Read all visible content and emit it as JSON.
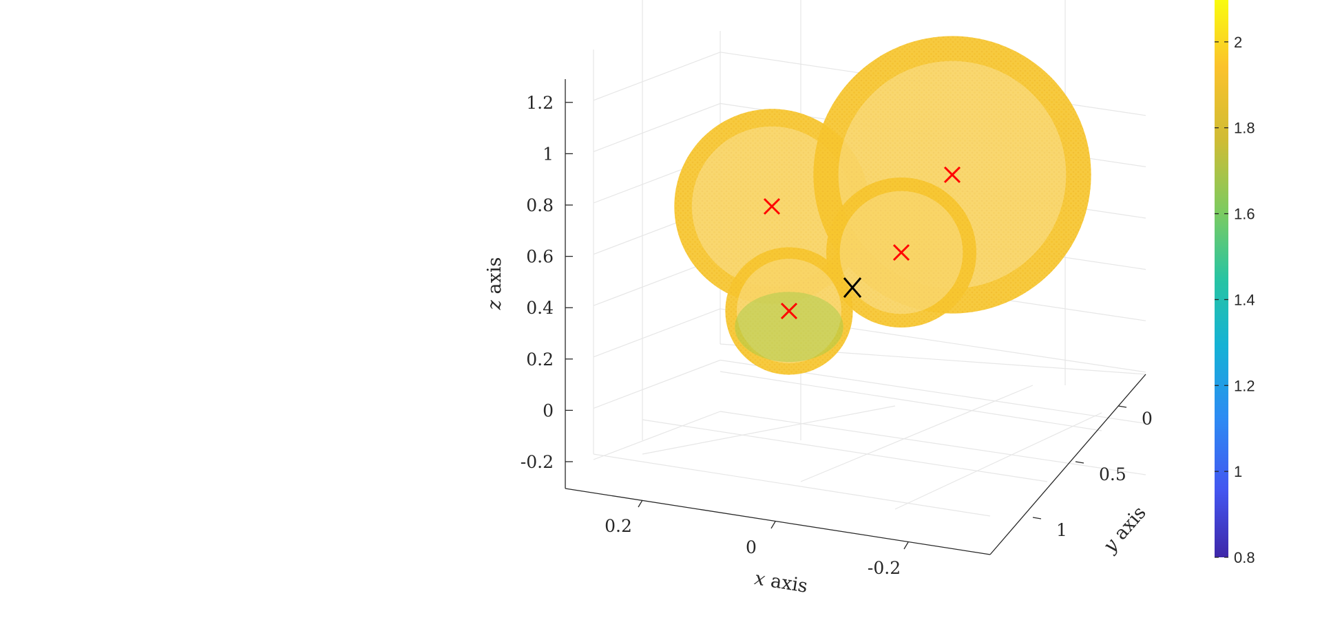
{
  "chart_data": {
    "type": "scatter3d",
    "title": "",
    "axes": {
      "x": {
        "label_var": "x",
        "label_text": "axis",
        "ticks": [
          0.2,
          0,
          -0.2
        ],
        "tick_labels": [
          "0.2",
          "0",
          "-0.2"
        ]
      },
      "y": {
        "label_var": "y",
        "label_text": "axis",
        "ticks": [
          0,
          0.5,
          1
        ],
        "tick_labels": [
          "0",
          "0.5",
          "1"
        ]
      },
      "z": {
        "label_var": "z",
        "label_text": "axis",
        "ticks": [
          -0.2,
          0,
          0.2,
          0.4,
          0.6,
          0.8,
          1,
          1.2
        ],
        "tick_labels": [
          "-0.2",
          "0",
          "0.2",
          "0.4",
          "0.6",
          "0.8",
          "1",
          "1.2"
        ],
        "range": [
          -0.3,
          1.3
        ]
      }
    },
    "grid": true,
    "colormap": "parula",
    "colorbar": {
      "range": [
        0.8,
        2.1
      ],
      "ticks": [
        0.8,
        1,
        1.2,
        1.4,
        1.6,
        1.8,
        2
      ],
      "tick_labels": [
        "0.8",
        "1",
        "1.2",
        "1.4",
        "1.6",
        "1.8",
        "2"
      ],
      "location": "right"
    },
    "spheres": [
      {
        "name": "sphere-1",
        "center": [
          0.07,
          0.05,
          0.75
        ],
        "radius": 0.26,
        "marker_color": "#ff0000",
        "dominant_value": 1.95
      },
      {
        "name": "sphere-2",
        "center": [
          -0.22,
          -0.1,
          0.92
        ],
        "radius": 0.37,
        "marker_color": "#ff0000",
        "dominant_value": 1.95
      },
      {
        "name": "sphere-3",
        "center": [
          -0.12,
          0.35,
          0.62
        ],
        "radius": 0.2,
        "marker_color": "#ff0000",
        "dominant_value": 1.9
      },
      {
        "name": "sphere-4",
        "center": [
          0.12,
          0.75,
          0.4
        ],
        "radius": 0.17,
        "marker_color": "#ff0000",
        "dominant_value": 1.8
      }
    ],
    "contact_marker": {
      "center": [
        -0.04,
        0.55,
        0.5
      ],
      "marker_color": "#000000"
    }
  }
}
